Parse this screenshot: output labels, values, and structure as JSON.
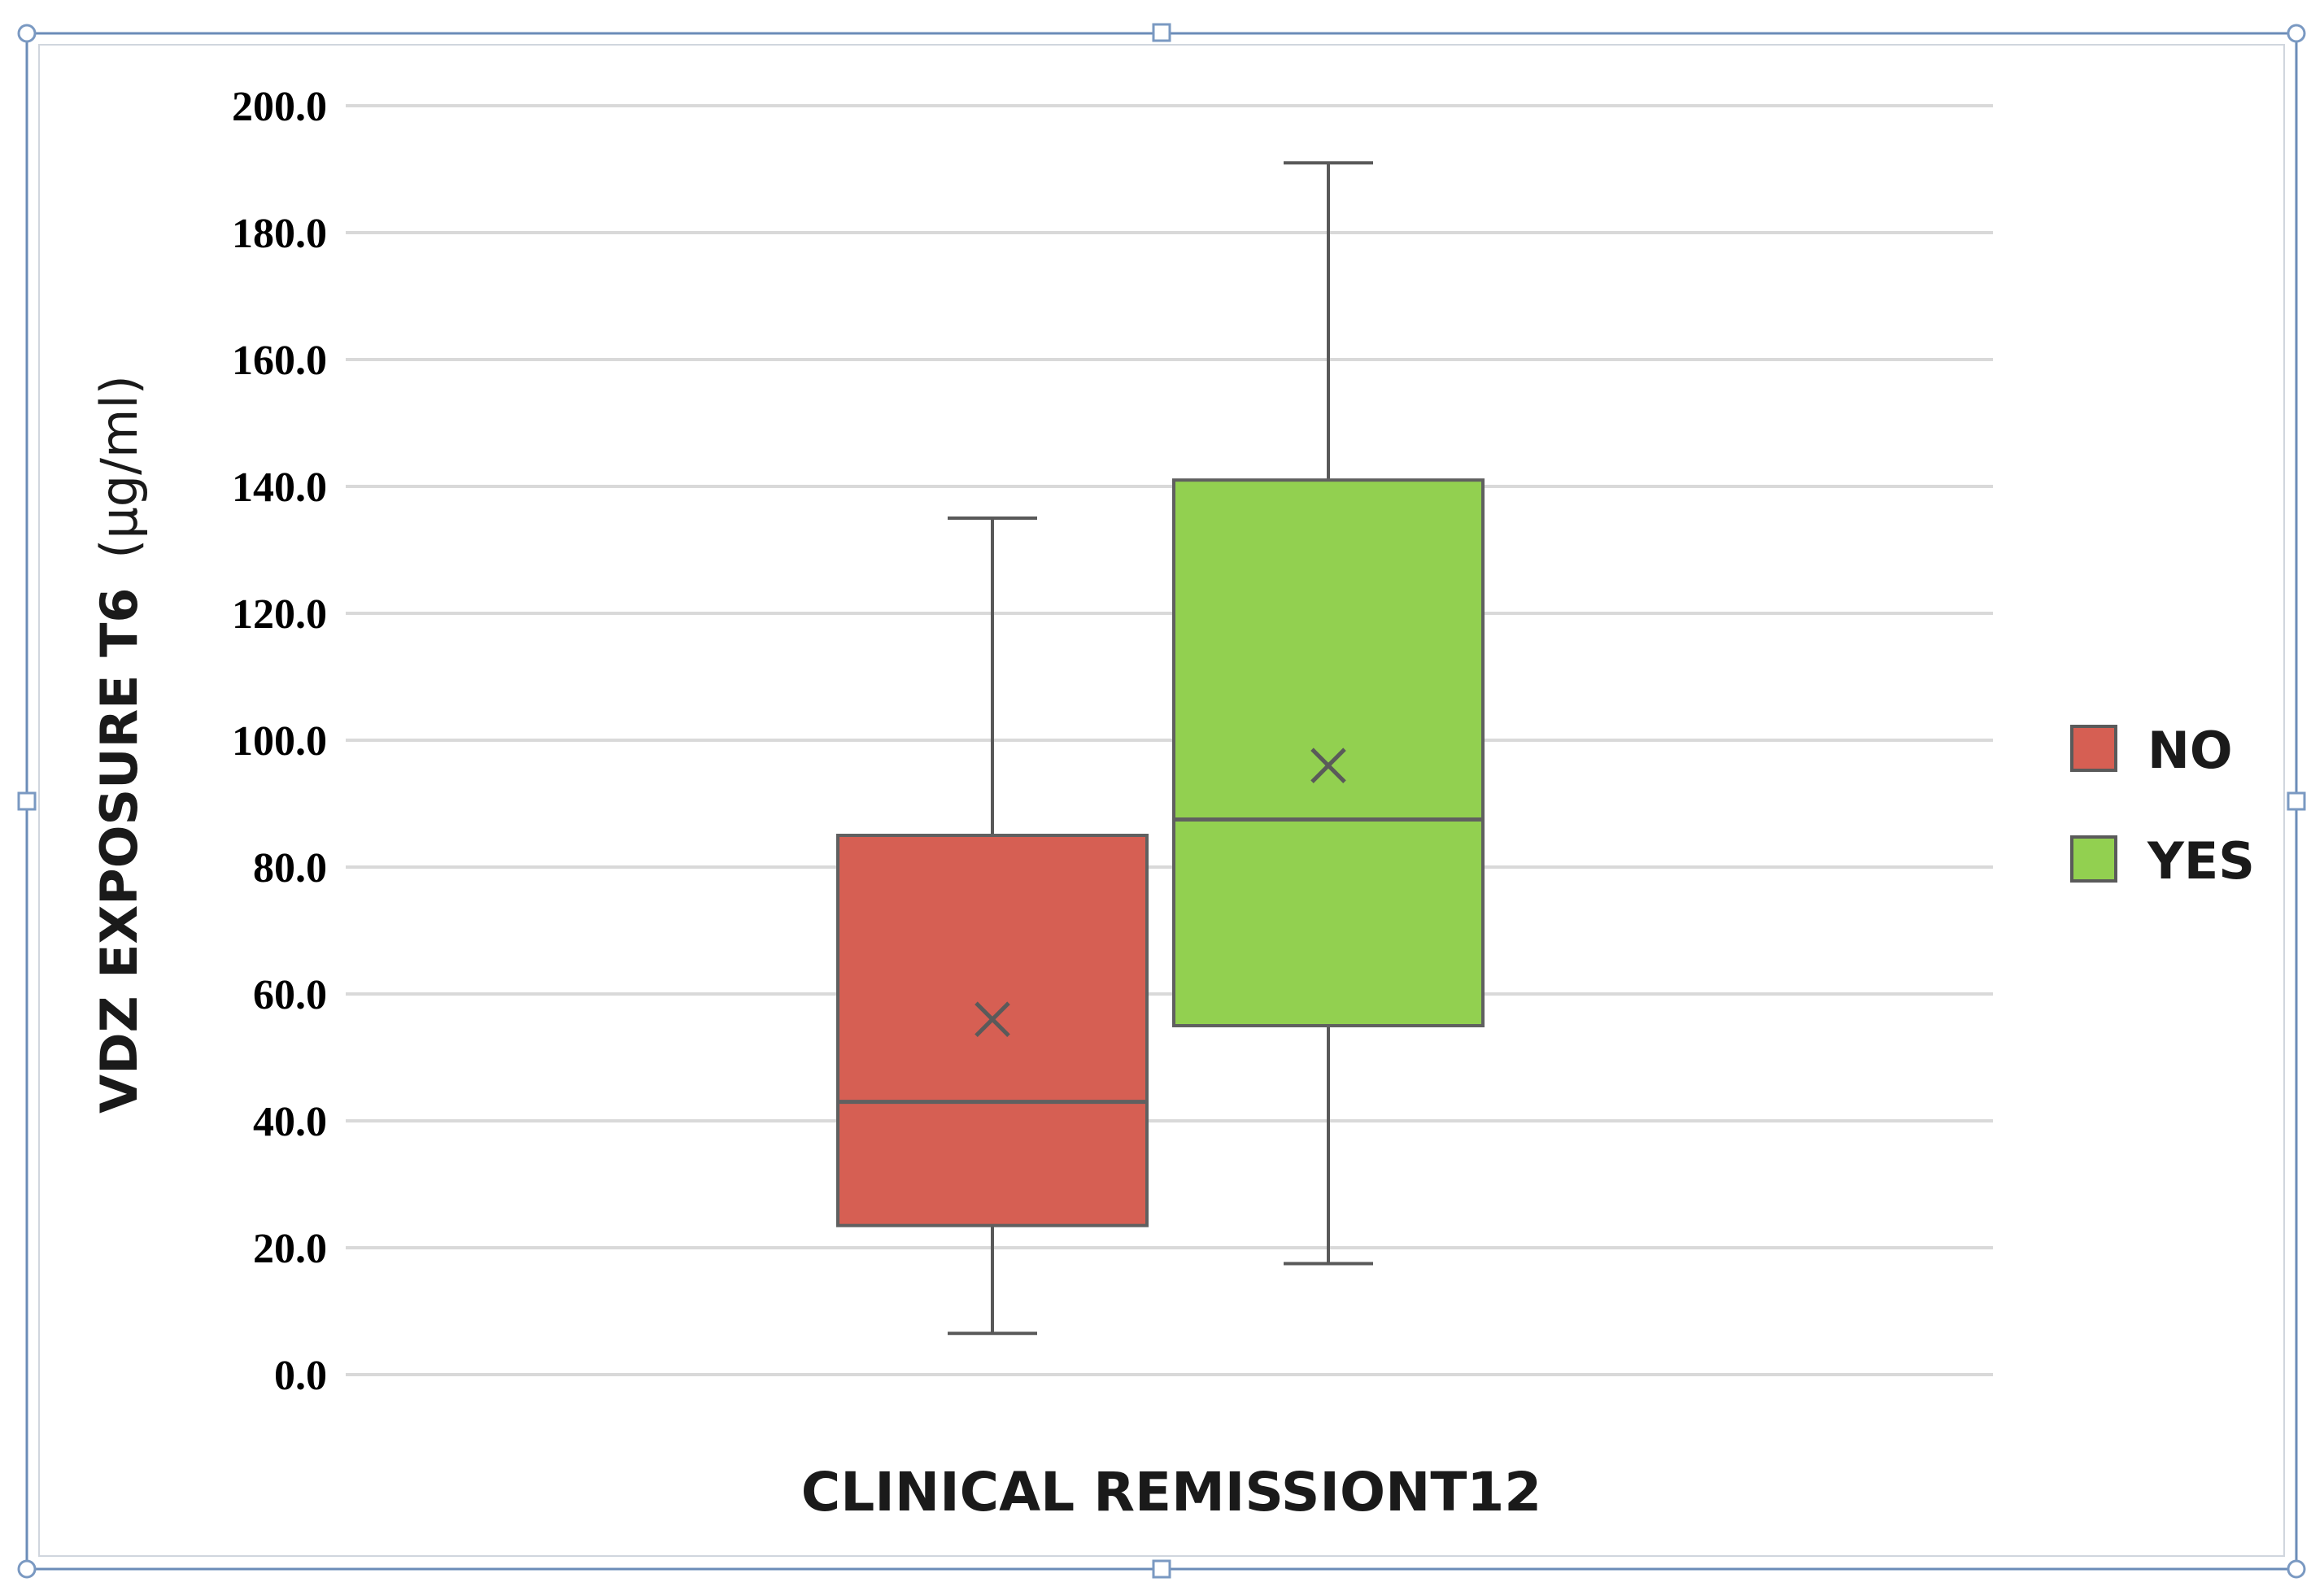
{
  "chart_data": {
    "type": "boxplot",
    "title": "",
    "xlabel": "CLINICAL REMISSIONT12",
    "ylabel_main": "VDZ EXPOSURE T6",
    "ylabel_unit": "(µg/ml)",
    "ylim": [
      0,
      200
    ],
    "yticks": [
      0,
      20,
      40,
      60,
      80,
      100,
      120,
      140,
      160,
      180,
      200
    ],
    "ytick_labels": [
      "0.0",
      "20.0",
      "40.0",
      "60.0",
      "80.0",
      "100.0",
      "120.0",
      "140.0",
      "160.0",
      "180.0",
      "200.0"
    ],
    "grid": true,
    "legend_position": "right",
    "series": [
      {
        "name": "NO",
        "color": "#d65f53",
        "min": 6.5,
        "q1": 23.5,
        "median": 43,
        "q3": 85,
        "max": 135,
        "mean": 56
      },
      {
        "name": "YES",
        "color": "#92d050",
        "min": 17.5,
        "q1": 55,
        "median": 87.5,
        "q3": 141,
        "max": 191,
        "mean": 96
      }
    ]
  },
  "colors": {
    "frame": "#5b7fae",
    "grid": "#d9d9d9",
    "whisker": "#595959",
    "box_border": "#606060"
  }
}
